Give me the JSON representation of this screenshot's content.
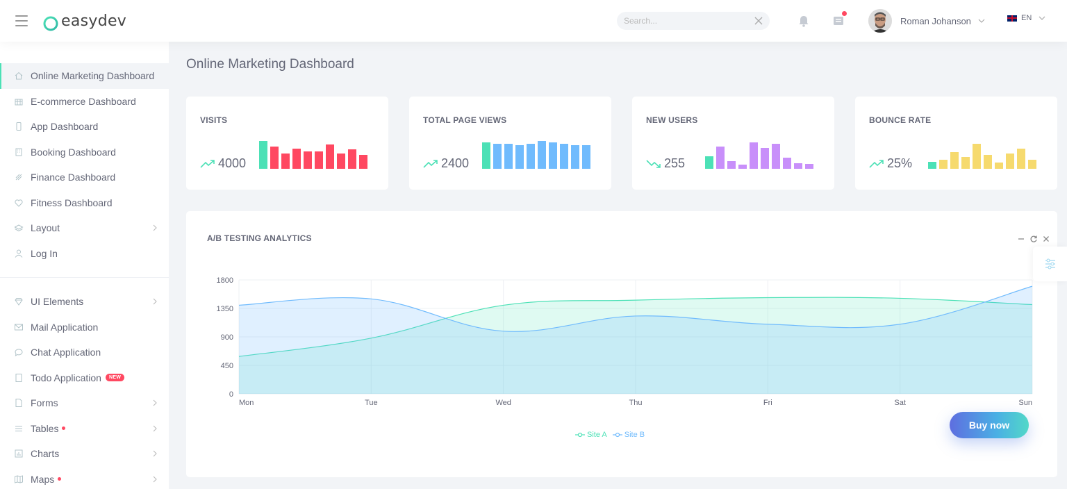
{
  "app": {
    "brand": "easydev",
    "page_title": "Online Marketing Dashboard"
  },
  "header": {
    "search_placeholder": "Search...",
    "user_name": "Roman Johanson",
    "language": "EN"
  },
  "sidebar": {
    "group1": [
      {
        "label": "Online Marketing Dashboard",
        "icon": "home-icon",
        "active": true
      },
      {
        "label": "E-commerce Dashboard",
        "icon": "store-icon"
      },
      {
        "label": "App Dashboard",
        "icon": "phone-icon"
      },
      {
        "label": "Booking Dashboard",
        "icon": "apartment-icon"
      },
      {
        "label": "Finance Dashboard",
        "icon": "rocket-icon"
      },
      {
        "label": "Fitness Dashboard",
        "icon": "heart-pulse-icon"
      },
      {
        "label": "Layout",
        "icon": "layers-icon",
        "arrow": true
      },
      {
        "label": "Log In",
        "icon": "user-icon"
      }
    ],
    "group2": [
      {
        "label": "UI Elements",
        "icon": "diamond-icon",
        "arrow": true
      },
      {
        "label": "Mail Application",
        "icon": "envelope-icon"
      },
      {
        "label": "Chat Application",
        "icon": "bubble-icon"
      },
      {
        "label": "Todo Application",
        "icon": "book-icon",
        "badge": "NEW"
      },
      {
        "label": "Forms",
        "icon": "file-icon",
        "arrow": true
      },
      {
        "label": "Tables",
        "icon": "list-icon",
        "arrow": true,
        "dot": true
      },
      {
        "label": "Charts",
        "icon": "chart-icon",
        "arrow": true
      },
      {
        "label": "Maps",
        "icon": "map-icon",
        "arrow": true,
        "dot": true
      }
    ]
  },
  "stats": [
    {
      "title": "VISITS",
      "value": "4000",
      "trend": "up",
      "color": "#ff4861",
      "accent": "#4ce1b6",
      "accent_index": 0,
      "bars": [
        40,
        32,
        22,
        29,
        25,
        25,
        35,
        22,
        28,
        20
      ]
    },
    {
      "title": "TOTAL PAGE VIEWS",
      "value": "2400",
      "trend": "up",
      "color": "#70bbfd",
      "accent": "#4ce1b6",
      "accent_index": 0,
      "bars": [
        38,
        36,
        36,
        34,
        36,
        40,
        38,
        36,
        34,
        34
      ]
    },
    {
      "title": "NEW USERS",
      "value": "255",
      "trend": "down",
      "color": "#c88ffa",
      "accent": "#4ce1b6",
      "accent_index": 0,
      "bars": [
        18,
        32,
        11,
        6,
        38,
        30,
        36,
        16,
        8,
        7
      ]
    },
    {
      "title": "BOUNCE RATE",
      "value": "25%",
      "trend": "up",
      "color": "#f6da6e",
      "accent": "#4ce1b6",
      "accent_index": 0,
      "bars": [
        10,
        13,
        24,
        17,
        36,
        20,
        9,
        22,
        29,
        13
      ]
    }
  ],
  "ab_testing": {
    "title": "A/B TESTING ANALYTICS",
    "buy_label": "Buy now",
    "chart_data": {
      "type": "area",
      "categories": [
        "Mon",
        "Tue",
        "Wed",
        "Thu",
        "Fri",
        "Sat",
        "Sun"
      ],
      "ylim": [
        0,
        1800
      ],
      "yticks": [
        0,
        450,
        900,
        1350,
        1800
      ],
      "grid": true,
      "legend_position": "bottom",
      "series": [
        {
          "name": "Site A",
          "color": "#4ce1b6",
          "values": [
            590,
            880,
            1400,
            1480,
            1520,
            1510,
            1410
          ]
        },
        {
          "name": "Site B",
          "color": "#70bbfd",
          "values": [
            1400,
            1500,
            990,
            1230,
            1100,
            1100,
            1700
          ]
        }
      ]
    }
  }
}
